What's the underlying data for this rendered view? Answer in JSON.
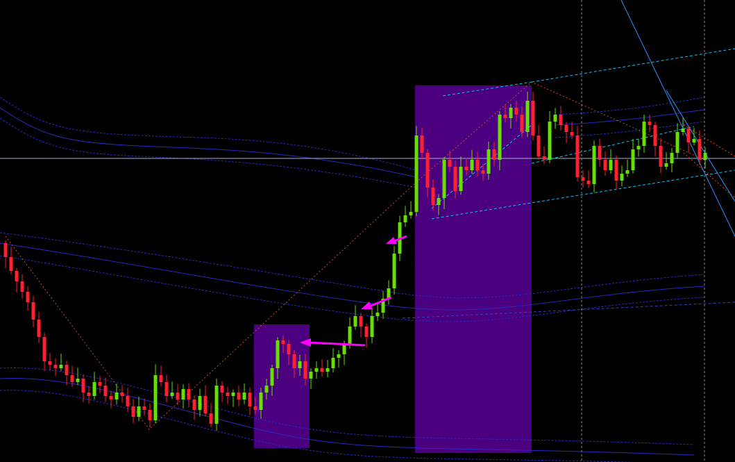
{
  "chart_data": {
    "type": "candlestick",
    "title": "",
    "xlabel": "",
    "ylabel": "",
    "ylim": [
      0,
      66.5
    ],
    "grid": false,
    "first_open": 31.5,
    "closes": [
      29.5,
      27.5,
      26,
      24.5,
      23,
      20.5,
      18,
      14.5,
      14,
      13.5,
      14,
      12.5,
      11.5,
      12,
      10,
      9.5,
      11.5,
      11,
      9.5,
      9,
      10,
      9.5,
      8,
      6.5,
      8,
      7.5,
      6,
      12.5,
      11.5,
      9.5,
      10,
      9,
      10.5,
      9,
      7.5,
      9.5,
      7,
      5.5,
      11,
      10,
      9.5,
      10,
      9,
      10,
      8,
      7.5,
      10,
      11,
      13.5,
      17.5,
      17,
      15.5,
      13.5,
      14.5,
      12,
      13,
      13.5,
      13,
      13.5,
      15,
      15.5,
      17,
      19.5,
      21,
      19.5,
      18,
      21,
      21.5,
      23.5,
      25,
      30,
      34.5,
      35.5,
      36,
      47,
      44.5,
      39.5,
      37,
      38,
      43.5,
      42.5,
      39,
      42.5,
      42,
      43.5,
      42,
      41.5,
      45,
      43.5,
      50,
      49.5,
      51,
      50,
      47.5,
      52,
      47,
      44,
      43.5,
      49,
      50,
      48.5,
      47.5,
      47,
      41,
      40.5,
      40,
      45.5,
      43.5,
      42,
      43.5,
      40.5,
      41.5,
      42,
      45,
      45.5,
      49,
      48.5,
      45.5,
      42.5,
      43,
      44.5,
      47.5,
      48,
      46,
      46.5,
      43.5,
      44.5
    ],
    "horizontal_line": 43.7,
    "colors": {
      "background": "#000000",
      "bull": "#66e000",
      "bear": "#ff2030",
      "highlight_box": "#4b0080",
      "hline": "#a0b4d0",
      "channel": "#00c8ff",
      "arrow": "#ff00ff",
      "envelope": "#2828c0",
      "zigzag": "#ff6020"
    }
  }
}
